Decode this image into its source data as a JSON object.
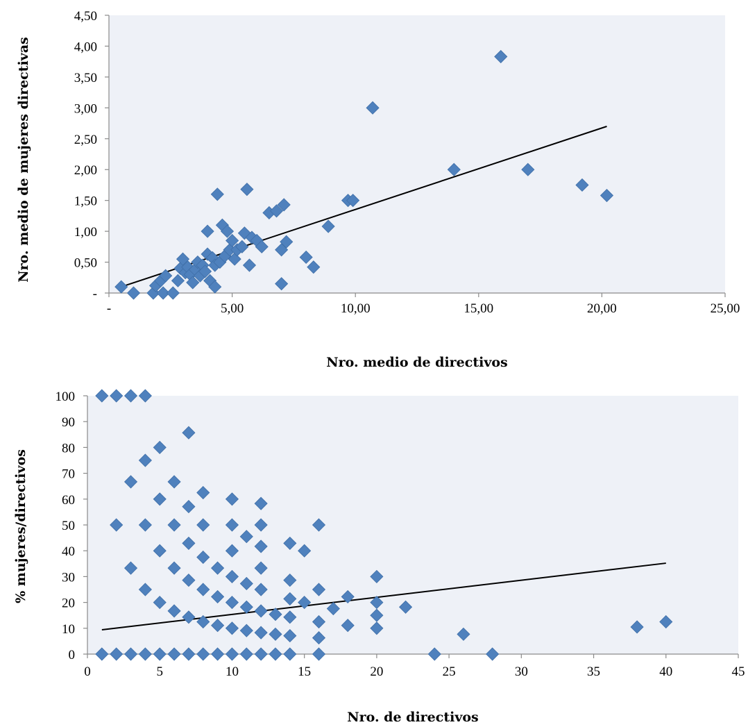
{
  "chart_data": [
    {
      "type": "scatter",
      "title": "",
      "xlabel": "Nro. medio de directivos",
      "ylabel": "Nro. medio de mujeres directivas",
      "xlim": [
        0,
        25
      ],
      "ylim": [
        0,
        4.5
      ],
      "x_ticks": [
        {
          "value": 0,
          "label": "-"
        },
        {
          "value": 5,
          "label": "5,00"
        },
        {
          "value": 10,
          "label": "10,00"
        },
        {
          "value": 15,
          "label": "15,00"
        },
        {
          "value": 20,
          "label": "20,00"
        },
        {
          "value": 25,
          "label": "25,00"
        }
      ],
      "y_ticks": [
        {
          "value": 0,
          "label": "-"
        },
        {
          "value": 0.5,
          "label": "0,50"
        },
        {
          "value": 1,
          "label": "1,00"
        },
        {
          "value": 1.5,
          "label": "1,50"
        },
        {
          "value": 2,
          "label": "2,00"
        },
        {
          "value": 2.5,
          "label": "2,50"
        },
        {
          "value": 3,
          "label": "3,00"
        },
        {
          "value": 3.5,
          "label": "3,50"
        },
        {
          "value": 4,
          "label": "4,00"
        },
        {
          "value": 4.5,
          "label": "4,50"
        }
      ],
      "grid": false,
      "legend": "none",
      "marker": "diamond",
      "color": "#4f81bd",
      "trendline": {
        "x": [
          0.5,
          20.2
        ],
        "y": [
          0.1,
          2.7
        ]
      },
      "points": [
        [
          0.5,
          0.1
        ],
        [
          1.0,
          0.0
        ],
        [
          1.8,
          0.0
        ],
        [
          1.9,
          0.12
        ],
        [
          2.1,
          0.2
        ],
        [
          2.2,
          0.0
        ],
        [
          2.3,
          0.28
        ],
        [
          2.6,
          0.0
        ],
        [
          2.8,
          0.2
        ],
        [
          2.9,
          0.4
        ],
        [
          3.0,
          0.55
        ],
        [
          3.1,
          0.33
        ],
        [
          3.2,
          0.42
        ],
        [
          3.3,
          0.3
        ],
        [
          3.4,
          0.17
        ],
        [
          3.5,
          0.38
        ],
        [
          3.6,
          0.5
        ],
        [
          3.7,
          0.28
        ],
        [
          3.8,
          0.45
        ],
        [
          3.9,
          0.35
        ],
        [
          4.0,
          1.0
        ],
        [
          4.0,
          0.63
        ],
        [
          4.1,
          0.2
        ],
        [
          4.2,
          0.57
        ],
        [
          4.3,
          0.1
        ],
        [
          4.3,
          0.45
        ],
        [
          4.4,
          1.6
        ],
        [
          4.5,
          0.5
        ],
        [
          4.6,
          1.1
        ],
        [
          4.7,
          0.6
        ],
        [
          4.8,
          1.0
        ],
        [
          4.9,
          0.7
        ],
        [
          5.0,
          0.85
        ],
        [
          5.1,
          0.55
        ],
        [
          5.2,
          0.7
        ],
        [
          5.4,
          0.75
        ],
        [
          5.5,
          0.97
        ],
        [
          5.6,
          1.68
        ],
        [
          5.7,
          0.45
        ],
        [
          5.8,
          0.9
        ],
        [
          6.0,
          0.85
        ],
        [
          6.2,
          0.75
        ],
        [
          6.5,
          1.3
        ],
        [
          6.8,
          1.33
        ],
        [
          7.0,
          0.7
        ],
        [
          7.1,
          1.43
        ],
        [
          7.0,
          0.15
        ],
        [
          7.2,
          0.83
        ],
        [
          8.0,
          0.58
        ],
        [
          8.3,
          0.42
        ],
        [
          8.9,
          1.08
        ],
        [
          9.7,
          1.5
        ],
        [
          9.9,
          1.5
        ],
        [
          10.7,
          3.0
        ],
        [
          14.0,
          2.0
        ],
        [
          15.9,
          3.83
        ],
        [
          17.0,
          2.0
        ],
        [
          19.2,
          1.75
        ],
        [
          20.2,
          1.58
        ]
      ]
    },
    {
      "type": "scatter",
      "title": "",
      "xlabel": "Nro. de directivos",
      "ylabel": "% mujeres/directivos",
      "xlim": [
        0,
        45
      ],
      "ylim": [
        0,
        100
      ],
      "x_ticks": [
        {
          "value": 0,
          "label": "0"
        },
        {
          "value": 5,
          "label": "5"
        },
        {
          "value": 10,
          "label": "10"
        },
        {
          "value": 15,
          "label": "15"
        },
        {
          "value": 20,
          "label": "20"
        },
        {
          "value": 25,
          "label": "25"
        },
        {
          "value": 30,
          "label": "30"
        },
        {
          "value": 35,
          "label": "35"
        },
        {
          "value": 40,
          "label": "40"
        },
        {
          "value": 45,
          "label": "45"
        }
      ],
      "y_ticks": [
        {
          "value": 0,
          "label": "0"
        },
        {
          "value": 10,
          "label": "10"
        },
        {
          "value": 20,
          "label": "20"
        },
        {
          "value": 30,
          "label": "30"
        },
        {
          "value": 40,
          "label": "40"
        },
        {
          "value": 50,
          "label": "50"
        },
        {
          "value": 60,
          "label": "60"
        },
        {
          "value": 70,
          "label": "70"
        },
        {
          "value": 80,
          "label": "80"
        },
        {
          "value": 90,
          "label": "90"
        },
        {
          "value": 100,
          "label": "100"
        }
      ],
      "grid": false,
      "legend": "none",
      "marker": "diamond",
      "color": "#4f81bd",
      "trendline": {
        "x": [
          1,
          40
        ],
        "y": [
          9.4,
          35.2
        ]
      },
      "points": [
        [
          1,
          100
        ],
        [
          2,
          100
        ],
        [
          3,
          100
        ],
        [
          4,
          100
        ],
        [
          2,
          50
        ],
        [
          3,
          66.7
        ],
        [
          3,
          33.3
        ],
        [
          4,
          75
        ],
        [
          4,
          50
        ],
        [
          4,
          25
        ],
        [
          5,
          80
        ],
        [
          5,
          60
        ],
        [
          5,
          40
        ],
        [
          5,
          20
        ],
        [
          6,
          66.7
        ],
        [
          6,
          50
        ],
        [
          6,
          33.3
        ],
        [
          6,
          16.7
        ],
        [
          7,
          85.7
        ],
        [
          7,
          57.1
        ],
        [
          7,
          42.9
        ],
        [
          7,
          28.6
        ],
        [
          7,
          14.3
        ],
        [
          8,
          62.5
        ],
        [
          8,
          50
        ],
        [
          8,
          37.5
        ],
        [
          8,
          25
        ],
        [
          8,
          12.5
        ],
        [
          9,
          33.3
        ],
        [
          9,
          22.2
        ],
        [
          9,
          11.1
        ],
        [
          10,
          60
        ],
        [
          10,
          50
        ],
        [
          10,
          40
        ],
        [
          10,
          30
        ],
        [
          10,
          20
        ],
        [
          10,
          10
        ],
        [
          11,
          45.5
        ],
        [
          11,
          27.3
        ],
        [
          11,
          18.2
        ],
        [
          11,
          9.1
        ],
        [
          12,
          58.3
        ],
        [
          12,
          50
        ],
        [
          12,
          41.7
        ],
        [
          12,
          33.3
        ],
        [
          12,
          25
        ],
        [
          12,
          16.7
        ],
        [
          12,
          8.3
        ],
        [
          13,
          15.4
        ],
        [
          13,
          7.7
        ],
        [
          14,
          42.9
        ],
        [
          14,
          28.6
        ],
        [
          14,
          21.4
        ],
        [
          14,
          14.3
        ],
        [
          14,
          7.1
        ],
        [
          15,
          40
        ],
        [
          15,
          20
        ],
        [
          16,
          50
        ],
        [
          16,
          25
        ],
        [
          16,
          12.5
        ],
        [
          16,
          6.3
        ],
        [
          17,
          17.6
        ],
        [
          18,
          22.2
        ],
        [
          18,
          11.1
        ],
        [
          20,
          30
        ],
        [
          20,
          20
        ],
        [
          20,
          15
        ],
        [
          20,
          10
        ],
        [
          22,
          18.2
        ],
        [
          26,
          7.7
        ],
        [
          38,
          10.5
        ],
        [
          40,
          12.5
        ],
        [
          1,
          0
        ],
        [
          2,
          0
        ],
        [
          3,
          0
        ],
        [
          4,
          0
        ],
        [
          5,
          0
        ],
        [
          6,
          0
        ],
        [
          7,
          0
        ],
        [
          8,
          0
        ],
        [
          9,
          0
        ],
        [
          10,
          0
        ],
        [
          11,
          0
        ],
        [
          12,
          0
        ],
        [
          13,
          0
        ],
        [
          14,
          0
        ],
        [
          16,
          0
        ],
        [
          24,
          0
        ],
        [
          28,
          0
        ]
      ]
    }
  ]
}
